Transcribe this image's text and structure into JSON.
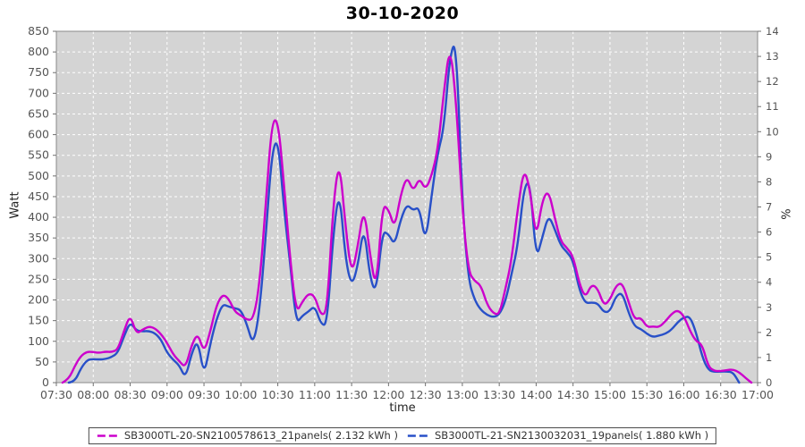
{
  "title": "30-10-2020",
  "chart_data": {
    "type": "line",
    "title": "30-10-2020",
    "plot_bg": "#d4d4d4",
    "grid_color": "#ffffff",
    "legend_position": "bottom",
    "x_axis": {
      "label": "time",
      "start_hour": 7.5,
      "end_hour": 17.0,
      "tick_interval_minutes": 30,
      "tick_labels": [
        "07:30",
        "08:00",
        "08:30",
        "09:00",
        "09:30",
        "10:00",
        "10:30",
        "11:00",
        "11:30",
        "12:00",
        "12:30",
        "13:00",
        "13:30",
        "14:00",
        "14:30",
        "15:00",
        "15:30",
        "16:00",
        "16:30",
        "17:00"
      ]
    },
    "y_axis_left": {
      "label": "Watt",
      "min": 0,
      "max": 850,
      "tick_step": 50
    },
    "y_axis_right": {
      "label": "%",
      "min": 0,
      "max": 14,
      "tick_step": 1
    },
    "sample_interval_minutes": 5,
    "series": [
      {
        "name": "SB3000TL-20-SN2100578613_21panels( 2.132 kWh )",
        "color": "#cc00cc",
        "values": [
          0,
          0,
          8,
          40,
          65,
          75,
          74,
          72,
          75,
          74,
          80,
          125,
          165,
          118,
          128,
          136,
          132,
          118,
          96,
          68,
          52,
          36,
          92,
          120,
          72,
          122,
          186,
          214,
          204,
          172,
          162,
          152,
          152,
          232,
          420,
          628,
          640,
          480,
          300,
          168,
          196,
          216,
          210,
          162,
          172,
          430,
          542,
          380,
          258,
          330,
          426,
          310,
          222,
          430,
          420,
          372,
          456,
          500,
          462,
          496,
          466,
          500,
          562,
          705,
          820,
          680,
          420,
          268,
          246,
          236,
          190,
          168,
          164,
          226,
          296,
          420,
          520,
          468,
          345,
          442,
          466,
          400,
          342,
          326,
          306,
          240,
          205,
          238,
          228,
          186,
          200,
          235,
          242,
          196,
          152,
          158,
          134,
          136,
          134,
          148,
          166,
          176,
          162,
          125,
          100,
          92,
          38,
          28,
          28,
          30,
          32,
          25,
          12,
          0,
          0
        ]
      },
      {
        "name": "SB3000TL-21-SN2130032031_19panels( 1.880 kWh )",
        "color": "#2850c8",
        "values": [
          0,
          0,
          0,
          2,
          35,
          55,
          57,
          56,
          57,
          62,
          72,
          112,
          147,
          126,
          124,
          125,
          120,
          105,
          72,
          55,
          42,
          10,
          72,
          104,
          16,
          92,
          152,
          190,
          184,
          180,
          176,
          140,
          90,
          168,
          345,
          552,
          596,
          420,
          290,
          142,
          162,
          172,
          186,
          142,
          138,
          358,
          470,
          300,
          232,
          282,
          382,
          252,
          216,
          366,
          360,
          332,
          396,
          432,
          416,
          426,
          336,
          452,
          556,
          615,
          795,
          828,
          430,
          248,
          200,
          176,
          164,
          158,
          164,
          196,
          262,
          330,
          472,
          490,
          296,
          352,
          406,
          372,
          332,
          316,
          296,
          225,
          192,
          194,
          192,
          170,
          172,
          210,
          218,
          170,
          136,
          130,
          118,
          110,
          114,
          118,
          128,
          146,
          158,
          160,
          122,
          62,
          30,
          26,
          27,
          27,
          25,
          0,
          0,
          0,
          0
        ]
      }
    ]
  }
}
